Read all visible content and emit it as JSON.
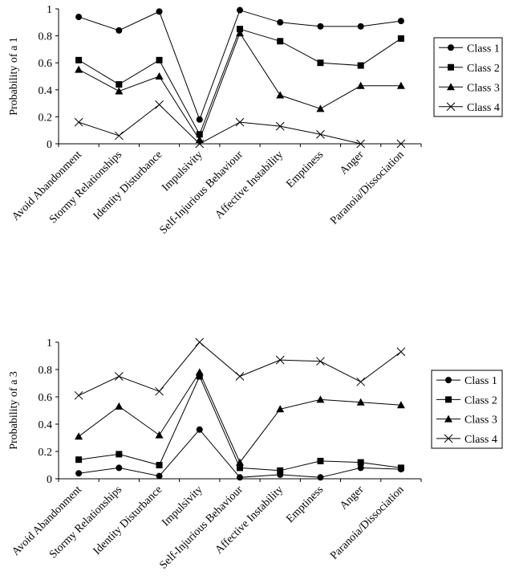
{
  "chart_data": [
    {
      "type": "line",
      "ylabel": "Probability of a 1",
      "ylim": [
        0,
        1
      ],
      "yticks": [
        "0",
        "0.2",
        "0.4",
        "0.6",
        "0.8",
        "1"
      ],
      "categories": [
        "Avoid Abandonment",
        "Stormy Relationships",
        "Identity Disturbance",
        "Impulsivity",
        "Self-Injurious Behaviour",
        "Affective Instability",
        "Emptiness",
        "Anger",
        "Paranoia/Dissociation"
      ],
      "legend_position": "right",
      "series": [
        {
          "name": "Class 1",
          "marker": "circle",
          "values": [
            0.94,
            0.84,
            0.98,
            0.18,
            0.99,
            0.9,
            0.87,
            0.87,
            0.91
          ]
        },
        {
          "name": "Class 2",
          "marker": "square",
          "values": [
            0.62,
            0.44,
            0.62,
            0.07,
            0.85,
            0.76,
            0.6,
            0.58,
            0.78
          ]
        },
        {
          "name": "Class 3",
          "marker": "triangle",
          "values": [
            0.55,
            0.39,
            0.5,
            0.03,
            0.82,
            0.36,
            0.26,
            0.43,
            0.43
          ]
        },
        {
          "name": "Class 4",
          "marker": "x",
          "values": [
            0.16,
            0.06,
            0.29,
            0.0,
            0.16,
            0.13,
            0.07,
            0.0,
            0.0
          ]
        }
      ]
    },
    {
      "type": "line",
      "ylabel": "Probability of a 3",
      "ylim": [
        0,
        1
      ],
      "yticks": [
        "0",
        "0.2",
        "0.4",
        "0.6",
        "0.8",
        "1"
      ],
      "categories": [
        "Avoid Abandonment",
        "Stormy Relationships",
        "Identity Disturbance",
        "Impulsivity",
        "Self-Injurious Behaviour",
        "Affective Instability",
        "Emptiness",
        "Anger",
        "Paranoia/Dissociation"
      ],
      "legend_position": "right",
      "series": [
        {
          "name": "Class 1",
          "marker": "circle",
          "values": [
            0.04,
            0.08,
            0.02,
            0.36,
            0.01,
            0.03,
            0.01,
            0.08,
            0.07
          ]
        },
        {
          "name": "Class 2",
          "marker": "square",
          "values": [
            0.14,
            0.18,
            0.1,
            0.75,
            0.08,
            0.06,
            0.13,
            0.12,
            0.08
          ]
        },
        {
          "name": "Class 3",
          "marker": "triangle",
          "values": [
            0.31,
            0.53,
            0.32,
            0.78,
            0.12,
            0.51,
            0.58,
            0.56,
            0.54
          ]
        },
        {
          "name": "Class 4",
          "marker": "x",
          "values": [
            0.61,
            0.75,
            0.64,
            1.0,
            0.75,
            0.87,
            0.86,
            0.71,
            0.93
          ]
        }
      ]
    }
  ]
}
